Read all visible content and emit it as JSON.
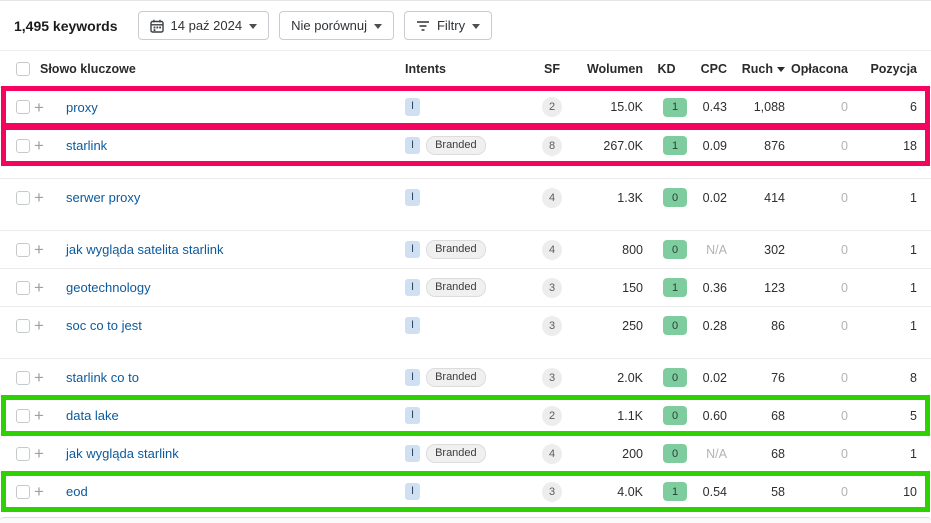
{
  "toolbar": {
    "keywords_count": "1,495 keywords",
    "date_button": "14 paź 2024",
    "compare_button": "Nie porównuj",
    "filters_button": "Filtry"
  },
  "table": {
    "columns": {
      "keyword": "Słowo kluczowe",
      "intents": "Intents",
      "sf": "SF",
      "volume": "Wolumen",
      "kd": "KD",
      "cpc": "CPC",
      "traffic": "Ruch",
      "paid": "Opłacona",
      "position": "Pozycja"
    },
    "rows": [
      {
        "keyword": "proxy",
        "intents": [
          "I"
        ],
        "sf": "2",
        "volume": "15.0K",
        "kd": "1",
        "cpc": "0.43",
        "traffic": "1,088",
        "paid": "0",
        "position": "6",
        "highlight": "pink"
      },
      {
        "keyword": "starlink",
        "intents": [
          "I",
          "Branded"
        ],
        "sf": "8",
        "volume": "267.0K",
        "kd": "1",
        "cpc": "0.09",
        "traffic": "876",
        "paid": "0",
        "position": "18",
        "highlight": "pink",
        "gap_after": true
      },
      {
        "keyword": "serwer proxy",
        "intents": [
          "I"
        ],
        "sf": "4",
        "volume": "1.3K",
        "kd": "0",
        "cpc": "0.02",
        "traffic": "414",
        "paid": "0",
        "position": "1",
        "gap_after": true
      },
      {
        "keyword": "jak wygląda satelita starlink",
        "intents": [
          "I",
          "Branded"
        ],
        "sf": "4",
        "volume": "800",
        "kd": "0",
        "cpc": "N/A",
        "traffic": "302",
        "paid": "0",
        "position": "1"
      },
      {
        "keyword": "geotechnology",
        "intents": [
          "I",
          "Branded"
        ],
        "sf": "3",
        "volume": "150",
        "kd": "1",
        "cpc": "0.36",
        "traffic": "123",
        "paid": "0",
        "position": "1"
      },
      {
        "keyword": "soc co to jest",
        "intents": [
          "I"
        ],
        "sf": "3",
        "volume": "250",
        "kd": "0",
        "cpc": "0.28",
        "traffic": "86",
        "paid": "0",
        "position": "1",
        "gap_after": true
      },
      {
        "keyword": "starlink co to",
        "intents": [
          "I",
          "Branded"
        ],
        "sf": "3",
        "volume": "2.0K",
        "kd": "0",
        "cpc": "0.02",
        "traffic": "76",
        "paid": "0",
        "position": "8"
      },
      {
        "keyword": "data lake",
        "intents": [
          "I"
        ],
        "sf": "2",
        "volume": "1.1K",
        "kd": "0",
        "cpc": "0.60",
        "traffic": "68",
        "paid": "0",
        "position": "5",
        "highlight": "green"
      },
      {
        "keyword": "jak wygląda starlink",
        "intents": [
          "I",
          "Branded"
        ],
        "sf": "4",
        "volume": "200",
        "kd": "0",
        "cpc": "N/A",
        "traffic": "68",
        "paid": "0",
        "position": "1"
      },
      {
        "keyword": "eod",
        "intents": [
          "I"
        ],
        "sf": "3",
        "volume": "4.0K",
        "kd": "1",
        "cpc": "0.54",
        "traffic": "58",
        "paid": "0",
        "position": "10",
        "highlight": "green"
      }
    ]
  },
  "colors": {
    "highlight_pink": "#f4045e",
    "highlight_green": "#2ed102",
    "link_blue": "#0a5a9e",
    "kd_badge_green": "#7fcd9f",
    "intent_badge_blue": "#cfe0f3"
  }
}
